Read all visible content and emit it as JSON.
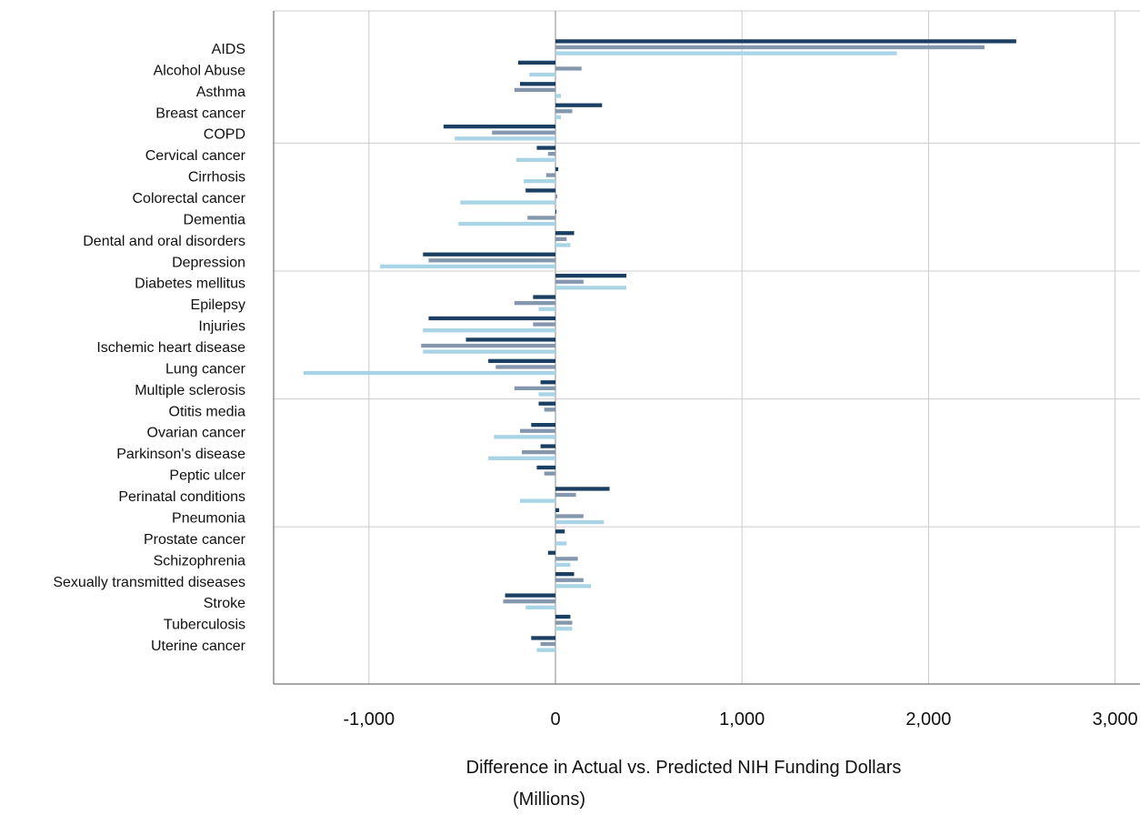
{
  "chart_data": {
    "type": "bar",
    "orientation": "horizontal",
    "categories": [
      "AIDS",
      "Alcohol Abuse",
      "Asthma",
      "Breast cancer",
      "COPD",
      "Cervical cancer",
      "Cirrhosis",
      "Colorectal cancer",
      "Dementia",
      "Dental and oral disorders",
      "Depression",
      "Diabetes mellitus",
      "Epilepsy",
      "Injuries",
      "Ischemic heart disease",
      "Lung cancer",
      "Multiple sclerosis",
      "Otitis media",
      "Ovarian cancer",
      "Parkinson's disease",
      "Peptic ulcer",
      "Perinatal conditions",
      "Pneumonia",
      "Prostate cancer",
      "Schizophrenia",
      "Sexually transmitted diseases",
      "Stroke",
      "Tuberculosis",
      "Uterine cancer"
    ],
    "series": [
      {
        "color": "#1b3f62",
        "values": [
          2470,
          -200,
          -190,
          250,
          -600,
          -100,
          15,
          -160,
          5,
          100,
          -710,
          380,
          -120,
          -680,
          -480,
          -360,
          -80,
          -90,
          -130,
          -80,
          -100,
          290,
          20,
          50,
          -40,
          100,
          -270,
          80,
          -130
        ]
      },
      {
        "color": "#8497ad",
        "values": [
          2300,
          140,
          -220,
          90,
          -340,
          -40,
          -50,
          10,
          -150,
          60,
          -680,
          150,
          -220,
          -120,
          -720,
          -320,
          -220,
          -60,
          -190,
          -180,
          -60,
          110,
          150,
          0,
          120,
          150,
          -280,
          90,
          -80
        ]
      },
      {
        "color": "#a9d4e6",
        "values": [
          1830,
          -140,
          30,
          30,
          -540,
          -210,
          -170,
          -510,
          -520,
          80,
          -940,
          380,
          -90,
          -710,
          -710,
          -1350,
          -90,
          -5,
          -330,
          -360,
          -5,
          -190,
          260,
          60,
          80,
          190,
          -160,
          90,
          -100
        ]
      }
    ],
    "x_ticks": [
      -1000,
      0,
      1000,
      2000,
      3000
    ],
    "x_tick_labels": [
      "-1,000",
      "0",
      "1,000",
      "2,000",
      "3,000"
    ],
    "xlim": [
      -1500,
      3200
    ],
    "xlabel_lines": [
      "Difference in Actual vs. Predicted NIH Funding Dollars",
      "(Millions)"
    ],
    "grid": true,
    "legend": "none"
  }
}
